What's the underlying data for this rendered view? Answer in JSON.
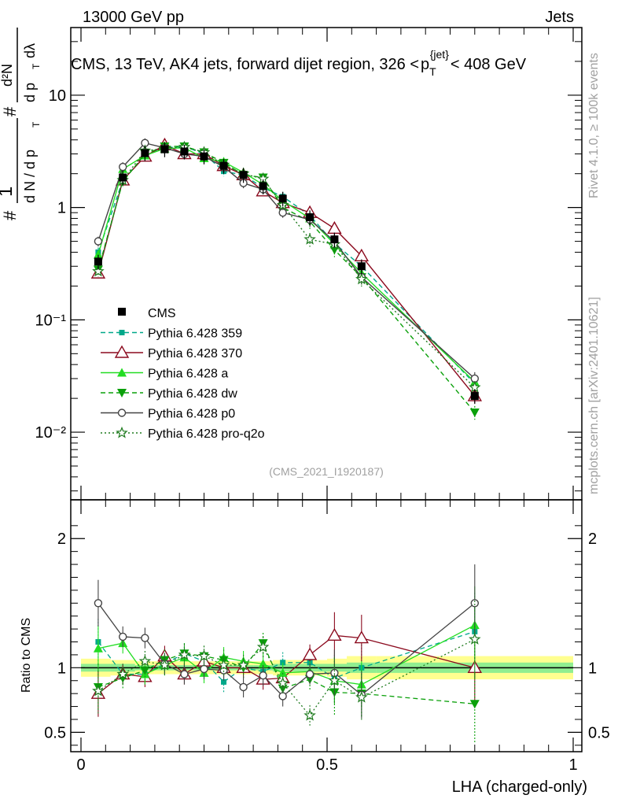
{
  "header": {
    "left": "13000 GeV pp",
    "right": "Jets"
  },
  "title": "CMS, 13 TeV, AK4 jets, forward dijet region, 326 <",
  "title_sup": "{jet}",
  "title_sub": "T",
  "title_p": "p",
  "title_end": "< 408 GeV",
  "ylabel_parts": {
    "hash": "#",
    "one": "1",
    "dN": "d N / d p",
    "T": "T",
    "d2N": "d²N",
    "dpT": "d p",
    "dl": "dλ"
  },
  "side_label_top": "Rivet 4.1.0, ≥ 100k events",
  "side_label_bottom": "mcplots.cern.ch [arXiv:2401.10621]",
  "watermark": "(CMS_2021_I1920187)",
  "ratio_ylabel": "Ratio to CMS",
  "xlabel": "LHA (charged-only)",
  "colors": {
    "cms": "#000000",
    "p359": "#00a88a",
    "p370": "#8b0a1e",
    "pa": "#22dd22",
    "pdw": "#0aa00a",
    "pp0": "#444444",
    "pq2o": "#1e7a1e",
    "band_yellow": "#ffff90",
    "band_green": "#90ee90"
  },
  "chart_data": {
    "type": "line",
    "xlabel": "LHA (charged-only)",
    "ylabel": "1/dN/dpT dN²/dpT dλ",
    "xlim": [
      0,
      1
    ],
    "main_ylim": [
      0.0025,
      40
    ],
    "main_yscale": "log",
    "main_yticks": [
      "10⁻²",
      "10⁻¹",
      "1",
      "10"
    ],
    "ratio_ylim": [
      0.35,
      2.3
    ],
    "ratio_yticks": [
      "0.5",
      "1",
      "2"
    ],
    "xticks": [
      "0",
      "0.5",
      "1"
    ],
    "x": [
      0.035,
      0.085,
      0.13,
      0.17,
      0.21,
      0.25,
      0.29,
      0.33,
      0.37,
      0.41,
      0.465,
      0.515,
      0.57,
      0.8
    ],
    "cms": {
      "name": "CMS",
      "values": [
        0.33,
        1.85,
        3.05,
        3.3,
        3.15,
        2.85,
        2.35,
        1.95,
        1.55,
        1.2,
        0.82,
        0.52,
        0.3,
        0.021
      ]
    },
    "series": [
      {
        "name": "Pythia 6.428 359",
        "values": [
          0.4,
          1.75,
          2.9,
          3.4,
          3.5,
          3.0,
          2.1,
          1.95,
          1.5,
          1.25,
          0.85,
          0.48,
          0.3,
          0.027
        ]
      },
      {
        "name": "Pythia 6.428 370",
        "values": [
          0.26,
          1.75,
          2.85,
          3.6,
          3.0,
          3.0,
          2.35,
          1.95,
          1.4,
          1.1,
          0.9,
          0.65,
          0.37,
          0.021
        ]
      },
      {
        "name": "Pythia 6.428 a",
        "values": [
          0.38,
          2.2,
          2.9,
          3.35,
          3.4,
          2.75,
          2.55,
          2.05,
          1.6,
          1.15,
          0.8,
          0.47,
          0.26,
          0.028
        ]
      },
      {
        "name": "Pythia 6.428 dw",
        "values": [
          0.28,
          1.7,
          3.0,
          3.5,
          3.5,
          3.1,
          2.5,
          1.95,
          1.85,
          1.0,
          0.75,
          0.42,
          0.24,
          0.015
        ]
      },
      {
        "name": "Pythia 6.428 p0",
        "values": [
          0.5,
          2.3,
          3.75,
          3.4,
          3.0,
          2.85,
          2.3,
          1.65,
          1.45,
          0.9,
          0.78,
          0.5,
          0.24,
          0.03
        ]
      },
      {
        "name": "Pythia 6.428 pro-q2o",
        "values": [
          0.27,
          1.75,
          3.2,
          3.35,
          3.45,
          3.1,
          2.4,
          2.0,
          1.8,
          1.05,
          0.52,
          0.47,
          0.23,
          0.025
        ]
      }
    ],
    "ratios": [
      {
        "name": "Pythia 6.428 359",
        "values": [
          1.2,
          0.95,
          0.95,
          1.03,
          1.11,
          1.05,
          0.89,
          1.0,
          0.97,
          1.04,
          1.04,
          0.92,
          1.0,
          1.28
        ]
      },
      {
        "name": "Pythia 6.428 370",
        "values": [
          0.8,
          0.95,
          0.93,
          1.09,
          0.95,
          1.05,
          1.0,
          1.0,
          0.91,
          0.92,
          1.1,
          1.25,
          1.23,
          1.0
        ]
      },
      {
        "name": "Pythia 6.428 a",
        "values": [
          1.15,
          1.19,
          0.95,
          1.02,
          1.08,
          0.96,
          1.08,
          1.05,
          1.03,
          0.96,
          0.97,
          0.9,
          0.87,
          1.33
        ]
      },
      {
        "name": "Pythia 6.428 dw",
        "values": [
          0.85,
          0.92,
          0.98,
          1.06,
          1.11,
          1.09,
          1.06,
          1.0,
          1.19,
          0.84,
          0.91,
          0.81,
          0.8,
          0.72
        ]
      },
      {
        "name": "Pythia 6.428 p0",
        "values": [
          1.5,
          1.24,
          1.23,
          1.03,
          0.95,
          0.99,
          0.98,
          0.85,
          0.94,
          0.78,
          0.95,
          0.96,
          0.79,
          1.5
        ]
      },
      {
        "name": "Pythia 6.428 pro-q2o",
        "values": [
          0.82,
          0.95,
          1.05,
          1.02,
          1.1,
          1.09,
          1.02,
          1.02,
          1.16,
          0.88,
          0.63,
          0.9,
          0.77,
          1.22
        ]
      }
    ]
  },
  "legend": [
    "CMS",
    "Pythia 6.428 359",
    "Pythia 6.428 370",
    "Pythia 6.428 a",
    "Pythia 6.428 dw",
    "Pythia 6.428 p0",
    "Pythia 6.428 pro-q2o"
  ]
}
